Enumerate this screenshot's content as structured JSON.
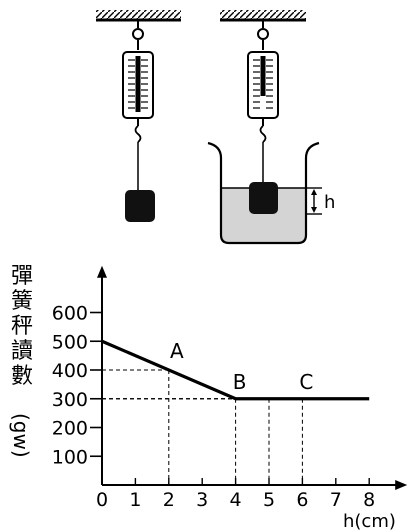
{
  "chart_data": {
    "type": "line",
    "ylabel_chars": [
      "彈",
      "簧",
      "秤",
      "讀",
      "數"
    ],
    "ylabel_unit": "(gw)",
    "xlabel": "h(cm)",
    "x_ticks": [
      "0",
      "1",
      "2",
      "3",
      "4",
      "5",
      "6",
      "7",
      "8"
    ],
    "y_ticks": [
      "100",
      "200",
      "300",
      "400",
      "500",
      "600"
    ],
    "xlim": [
      0,
      8
    ],
    "ylim": [
      0,
      700
    ],
    "series": [
      {
        "x": [
          0,
          4,
          8
        ],
        "y": [
          500,
          300,
          300
        ]
      }
    ],
    "point_labels": [
      {
        "text": "A",
        "x": 2,
        "y": 400
      },
      {
        "text": "B",
        "x": 4,
        "y": 300
      },
      {
        "text": "C",
        "x": 6,
        "y": 300
      }
    ],
    "dashed_guides": [
      {
        "x": 2,
        "y": 400
      },
      {
        "x": 4,
        "y": 300
      },
      {
        "x": 5,
        "y": 300
      },
      {
        "x": 6,
        "y": 300
      }
    ]
  },
  "illustration": {
    "depth_label": "h"
  }
}
